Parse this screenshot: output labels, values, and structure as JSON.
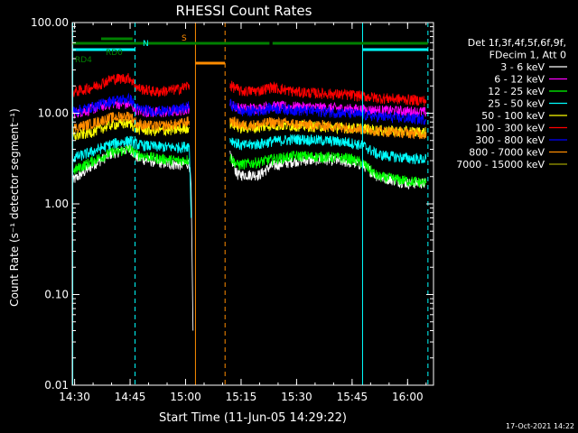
{
  "chart_data": {
    "type": "line",
    "title": "RHESSI Count Rates",
    "xlabel": "Start Time (11-Jun-05 14:29:22)",
    "ylabel": "Count Rate (s⁻¹ detector segment⁻¹)",
    "x_range": [
      "14:29:22",
      "16:07:00"
    ],
    "y_range": [
      0.01,
      100
    ],
    "y_scale": "log",
    "x_ticks": [
      "14:30",
      "14:45",
      "15:00",
      "15:15",
      "15:30",
      "15:45",
      "16:00"
    ],
    "y_ticks": [
      "0.01",
      "0.10",
      "1.00",
      "10.00",
      "100.00"
    ],
    "legend_title": [
      "Det 1f,3f,4f,5f,6f,9f,",
      "FDecim 1, Att 0"
    ],
    "legend_position": "right",
    "timestamp": "17-Oct-2021 14:22",
    "series": [
      {
        "name": "3 - 6 keV",
        "color": "#ffffff",
        "points": [
          [
            "14:29:30",
            1.8
          ],
          [
            "14:35",
            2.7
          ],
          [
            "14:40",
            3.6
          ],
          [
            "14:45",
            4.1
          ],
          [
            "14:47",
            3.2
          ],
          [
            "14:52",
            2.9
          ],
          [
            "14:58",
            2.7
          ],
          [
            "15:01",
            2.8
          ],
          [
            "15:01:30",
            1.6
          ],
          [
            "15:02",
            0.04
          ],
          null,
          [
            "15:12",
            3.4
          ],
          [
            "15:14",
            2.1
          ],
          [
            "15:20",
            2.1
          ],
          [
            "15:23",
            2.6
          ],
          [
            "15:30",
            3.0
          ],
          [
            "15:38",
            3.1
          ],
          [
            "15:44",
            2.9
          ],
          [
            "15:48",
            2.7
          ],
          [
            "15:52",
            2.0
          ],
          [
            "16:00",
            1.7
          ],
          [
            "16:05",
            1.7
          ]
        ]
      },
      {
        "name": "6 - 12 keV",
        "color": "#ff00ff",
        "points": [
          [
            "14:29:30",
            10.0
          ],
          [
            "14:35",
            11.2
          ],
          [
            "14:40",
            13.0
          ],
          [
            "14:45",
            12.5
          ],
          [
            "14:47",
            10.7
          ],
          [
            "14:52",
            10.2
          ],
          [
            "14:58",
            10.6
          ],
          [
            "15:01",
            11.5
          ],
          null,
          [
            "15:12",
            12.5
          ],
          [
            "15:15",
            11.3
          ],
          [
            "15:20",
            11.4
          ],
          [
            "15:23",
            12.0
          ],
          [
            "15:30",
            11.8
          ],
          [
            "15:38",
            11.5
          ],
          [
            "15:44",
            11.2
          ],
          [
            "15:48",
            11.0
          ],
          [
            "15:52",
            10.8
          ],
          [
            "16:00",
            10.5
          ],
          [
            "16:05",
            10.3
          ]
        ]
      },
      {
        "name": "12 - 25 keV",
        "color": "#00ff00",
        "points": [
          [
            "14:29:30",
            2.3
          ],
          [
            "14:35",
            3.0
          ],
          [
            "14:40",
            3.7
          ],
          [
            "14:45",
            4.0
          ],
          [
            "14:47",
            3.5
          ],
          [
            "14:52",
            3.2
          ],
          [
            "14:58",
            3.0
          ],
          [
            "15:01",
            3.1
          ],
          null,
          [
            "15:12",
            3.3
          ],
          [
            "15:14",
            2.7
          ],
          [
            "15:20",
            2.9
          ],
          [
            "15:23",
            3.1
          ],
          [
            "15:30",
            3.4
          ],
          [
            "15:38",
            3.3
          ],
          [
            "15:44",
            3.2
          ],
          [
            "15:48",
            2.8
          ],
          [
            "15:52",
            2.0
          ],
          [
            "16:00",
            1.8
          ],
          [
            "16:05",
            1.7
          ]
        ]
      },
      {
        "name": "25 - 50 keV",
        "color": "#00ffff",
        "points": [
          [
            "14:29:30",
            3.2
          ],
          [
            "14:35",
            3.8
          ],
          [
            "14:40",
            4.6
          ],
          [
            "14:45",
            5.0
          ],
          [
            "14:47",
            4.5
          ],
          [
            "14:52",
            4.3
          ],
          [
            "14:58",
            4.2
          ],
          [
            "15:01",
            4.4
          ],
          [
            "15:01:30",
            0.7
          ],
          null,
          [
            "15:12",
            5.2
          ],
          [
            "15:15",
            4.4
          ],
          [
            "15:20",
            4.6
          ],
          [
            "15:23",
            4.9
          ],
          [
            "15:30",
            5.2
          ],
          [
            "15:38",
            5.0
          ],
          [
            "15:44",
            4.8
          ],
          [
            "15:48",
            4.4
          ],
          [
            "15:52",
            3.5
          ],
          [
            "16:00",
            3.2
          ],
          [
            "16:05",
            3.1
          ]
        ]
      },
      {
        "name": "50 - 100 keV",
        "color": "#ffff00",
        "points": [
          [
            "14:29:30",
            5.5
          ],
          [
            "14:35",
            6.3
          ],
          [
            "14:40",
            7.5
          ],
          [
            "14:45",
            7.8
          ],
          [
            "14:47",
            6.7
          ],
          [
            "14:52",
            6.4
          ],
          [
            "14:58",
            6.6
          ],
          [
            "15:01",
            7.0
          ],
          null,
          [
            "15:12",
            7.8
          ],
          [
            "15:15",
            6.9
          ],
          [
            "15:20",
            7.0
          ],
          [
            "15:23",
            7.4
          ],
          [
            "15:30",
            7.3
          ],
          [
            "15:38",
            7.1
          ],
          [
            "15:44",
            6.9
          ],
          [
            "15:48",
            6.8
          ],
          [
            "15:52",
            6.5
          ],
          [
            "16:00",
            6.3
          ],
          [
            "16:05",
            6.2
          ]
        ]
      },
      {
        "name": "100 - 300 keV",
        "color": "#ff0000",
        "points": [
          [
            "14:29:30",
            17.0
          ],
          [
            "14:35",
            19.5
          ],
          [
            "14:40",
            24.0
          ],
          [
            "14:45",
            24.5
          ],
          [
            "14:47",
            19.0
          ],
          [
            "14:52",
            17.2
          ],
          [
            "14:58",
            18.5
          ],
          [
            "15:01",
            20.5
          ],
          null,
          [
            "15:12",
            20.5
          ],
          [
            "15:15",
            17.5
          ],
          [
            "15:20",
            17.8
          ],
          [
            "15:23",
            19.5
          ],
          [
            "15:30",
            17.2
          ],
          [
            "15:38",
            16.5
          ],
          [
            "15:44",
            16.0
          ],
          [
            "15:48",
            15.5
          ],
          [
            "15:52",
            14.8
          ],
          [
            "16:00",
            14.2
          ],
          [
            "16:05",
            13.8
          ]
        ]
      },
      {
        "name": "300 - 800 keV",
        "color": "#0000ff",
        "points": [
          [
            "14:29:30",
            10.5
          ],
          [
            "14:35",
            11.8
          ],
          [
            "14:40",
            13.8
          ],
          [
            "14:45",
            14.5
          ],
          [
            "14:47",
            11.2
          ],
          [
            "14:52",
            10.5
          ],
          [
            "14:58",
            11.0
          ],
          [
            "15:01",
            12.0
          ],
          null,
          [
            "15:12",
            12.8
          ],
          [
            "15:15",
            10.5
          ],
          [
            "15:20",
            10.7
          ],
          [
            "15:23",
            11.5
          ],
          [
            "15:30",
            10.8
          ],
          [
            "15:38",
            10.4
          ],
          [
            "15:44",
            10.0
          ],
          [
            "15:48",
            9.6
          ],
          [
            "15:52",
            9.2
          ],
          [
            "16:00",
            8.8
          ],
          [
            "16:05",
            8.6
          ]
        ]
      },
      {
        "name": "800 - 7000 keV",
        "color": "#ff8c00",
        "points": [
          [
            "14:29:30",
            6.8
          ],
          [
            "14:35",
            7.8
          ],
          [
            "14:40",
            9.0
          ],
          [
            "14:45",
            9.4
          ],
          [
            "14:47",
            7.6
          ],
          [
            "14:52",
            7.2
          ],
          [
            "14:58",
            7.6
          ],
          [
            "15:01",
            8.2
          ],
          null,
          [
            "15:12",
            8.4
          ],
          [
            "15:15",
            7.4
          ],
          [
            "15:20",
            7.5
          ],
          [
            "15:23",
            8.0
          ],
          [
            "15:30",
            7.6
          ],
          [
            "15:38",
            7.3
          ],
          [
            "15:44",
            7.0
          ],
          [
            "15:48",
            6.7
          ],
          [
            "15:52",
            6.4
          ],
          [
            "16:00",
            6.1
          ],
          [
            "16:05",
            5.9
          ]
        ]
      },
      {
        "name": "7000 - 15000 keV",
        "color": "#a0a000",
        "points": []
      }
    ],
    "vertical_lines": [
      {
        "t": "14:29:30",
        "color": "#00ffff",
        "style": "solid"
      },
      {
        "t": "14:46:20",
        "color": "#00ffff",
        "style": "dashed"
      },
      {
        "t": "15:47:50",
        "color": "#00ffff",
        "style": "solid"
      },
      {
        "t": "16:05:30",
        "color": "#00ffff",
        "style": "dashed"
      },
      {
        "t": "15:02:40",
        "color": "#ff8c00",
        "style": "solid"
      },
      {
        "t": "15:10:40",
        "color": "#ff8c00",
        "style": "dashed"
      }
    ],
    "flag_bars": [
      {
        "label": "N",
        "color": "#00ffff",
        "y": 55,
        "segments": [
          [
            "14:29:30",
            "14:46:20"
          ],
          [
            "15:47:50",
            "16:05:30"
          ]
        ]
      },
      {
        "label": "S",
        "color": "#ff8c00",
        "y": 70,
        "segments": [
          [
            "15:02:40",
            "15:10:40"
          ]
        ]
      },
      {
        "label": "RD0",
        "color": "#008000",
        "y": 48,
        "segments": [
          [
            "14:29:30",
            "15:22:40"
          ],
          [
            "15:23:30",
            "16:05:30"
          ]
        ]
      },
      {
        "label": "RD4",
        "color": "#008000",
        "y": 43,
        "segments": [
          [
            "14:37:10",
            "14:45:40"
          ]
        ]
      }
    ]
  }
}
